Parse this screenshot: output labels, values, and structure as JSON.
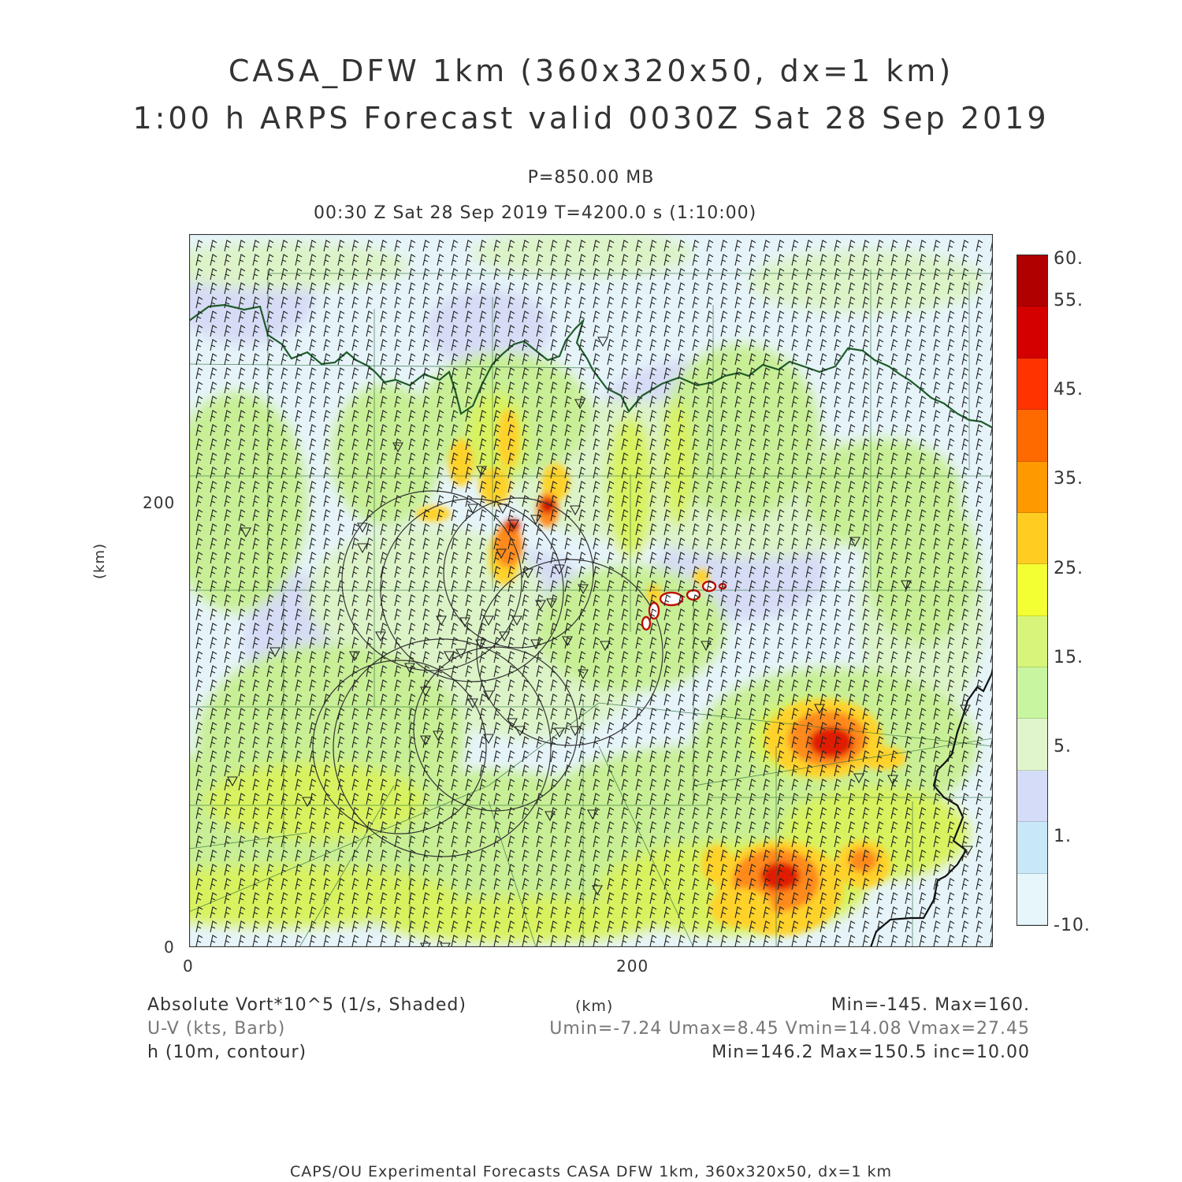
{
  "header": {
    "title_line1": "CASA_DFW 1km (360x320x50, dx=1 km)",
    "title_line2": "1:00 h ARPS Forecast valid 0030Z Sat 28 Sep 2019",
    "level": "P=850.00 MB",
    "valid_time": "00:30 Z Sat 28 Sep 2019    T=4200.0 s (1:10:00)"
  },
  "axes": {
    "x_label": "(km)",
    "y_label": "(km)",
    "x_ticks": [
      "0",
      "200"
    ],
    "y_ticks": [
      "0",
      "200"
    ]
  },
  "colorbar": {
    "labels": [
      "60.",
      "55.",
      "45.",
      "35.",
      "25.",
      "15.",
      "5.",
      "1.",
      "-10."
    ],
    "colors": [
      "#b00000",
      "#d40000",
      "#ff3300",
      "#ff6a00",
      "#ff9900",
      "#ffcc22",
      "#f4ff33",
      "#d6f57a",
      "#c8f5a0",
      "#e0f5cc",
      "#d4dcf7",
      "#c8e8f7",
      "#e6f6fb"
    ]
  },
  "legend": {
    "shaded": "Absolute Vort*10^5 (1/s, Shaded)",
    "barb": "U-V (kts, Barb)",
    "contour": "h (10m, contour)",
    "axis_unit": "(km)",
    "shaded_range": "Min=-145. Max=160.",
    "wind_range": "Umin=-7.24 Umax=8.45 Vmin=14.08 Vmax=27.45",
    "contour_range": "Min=146.2 Max=150.5 inc=10.00"
  },
  "footer": "CAPS/OU Experimental Forecasts  CASA DFW 1km, 360x320x50, dx=1 km",
  "map": {
    "colors": {
      "background": "#e6f4fa",
      "light_blue": "#d4e8f6",
      "lavender": "#d6dcf5",
      "pale_green": "#dcf3c8",
      "green": "#c8ef95",
      "yellow_green": "#d8f25e",
      "yellow": "#ffd22a",
      "orange": "#ff8a1a",
      "red": "#e01a00",
      "dark_red": "#b00000",
      "state_border": "#1f5c2a",
      "county_line": "#2f6e3e",
      "radar_ring": "#333333",
      "barb": "#222222"
    }
  }
}
